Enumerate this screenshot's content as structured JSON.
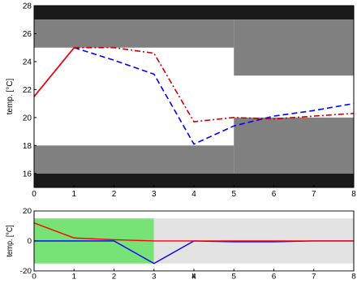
{
  "chart_data": [
    {
      "type": "line",
      "xlabel": "",
      "ylabel": "temp. [°C]",
      "xlim": [
        0,
        8
      ],
      "ylim": [
        15,
        28
      ],
      "xticks": [
        "0",
        "1",
        "2",
        "3",
        "4",
        "5",
        "6",
        "7",
        "8"
      ],
      "yticks": [
        "16",
        "18",
        "20",
        "22",
        "24",
        "26",
        "28"
      ],
      "bands": [
        {
          "x": [
            0,
            8
          ],
          "y": [
            27,
            28
          ],
          "color": "#1a1a1a"
        },
        {
          "x": [
            0,
            8
          ],
          "y": [
            15,
            16
          ],
          "color": "#1a1a1a"
        },
        {
          "x": [
            0,
            5
          ],
          "y": [
            25,
            27
          ],
          "color": "#808080"
        },
        {
          "x": [
            5,
            8
          ],
          "y": [
            23,
            27
          ],
          "color": "#808080"
        },
        {
          "x": [
            0,
            5
          ],
          "y": [
            16,
            18
          ],
          "color": "#808080"
        },
        {
          "x": [
            5,
            8
          ],
          "y": [
            16,
            20
          ],
          "color": "#808080"
        }
      ],
      "series": [
        {
          "style": "solid",
          "color": "#0000ff",
          "x": [
            0,
            1
          ],
          "y": [
            21.5,
            25.0
          ]
        },
        {
          "style": "solid",
          "color": "#ff0000",
          "x": [
            0,
            1
          ],
          "y": [
            21.5,
            25.0
          ]
        },
        {
          "style": "dashed",
          "color": "#0000ff",
          "x": [
            1,
            2,
            3,
            4,
            5,
            6,
            7,
            8
          ],
          "y": [
            25.0,
            24.1,
            23.1,
            18.1,
            19.4,
            20.1,
            20.5,
            21.0
          ]
        },
        {
          "style": "dashdot",
          "color": "#cc0000",
          "x": [
            1,
            2,
            3,
            4,
            5,
            6,
            7,
            8
          ],
          "y": [
            25.0,
            25.0,
            24.6,
            19.7,
            20.0,
            19.9,
            20.1,
            20.3
          ]
        }
      ]
    },
    {
      "type": "line",
      "xlabel": "k",
      "ylabel": "temp. [°C]",
      "xlim": [
        0,
        8
      ],
      "ylim": [
        -20,
        20
      ],
      "xticks": [
        "0",
        "1",
        "2",
        "3",
        "4",
        "5",
        "6",
        "7",
        "8"
      ],
      "yticks": [
        "-20",
        "0",
        "20"
      ],
      "bands": [
        {
          "x": [
            0,
            3
          ],
          "y": [
            -15,
            15
          ],
          "color": "#77e377"
        },
        {
          "x": [
            3,
            8
          ],
          "y": [
            -15,
            15
          ],
          "color": "#e3e3e3"
        }
      ],
      "series": [
        {
          "style": "solid",
          "color": "#0000ff",
          "x": [
            0,
            1,
            2,
            3,
            4,
            5,
            6,
            7,
            8
          ],
          "y": [
            0,
            0,
            0,
            -15,
            0,
            -0.5,
            -0.5,
            0,
            0
          ]
        },
        {
          "style": "solid",
          "color": "#ff0000",
          "x": [
            0,
            1,
            2,
            3,
            4,
            5,
            6,
            7,
            8
          ],
          "y": [
            12,
            2,
            0.8,
            0,
            0,
            0,
            0,
            0,
            0
          ]
        }
      ]
    }
  ]
}
